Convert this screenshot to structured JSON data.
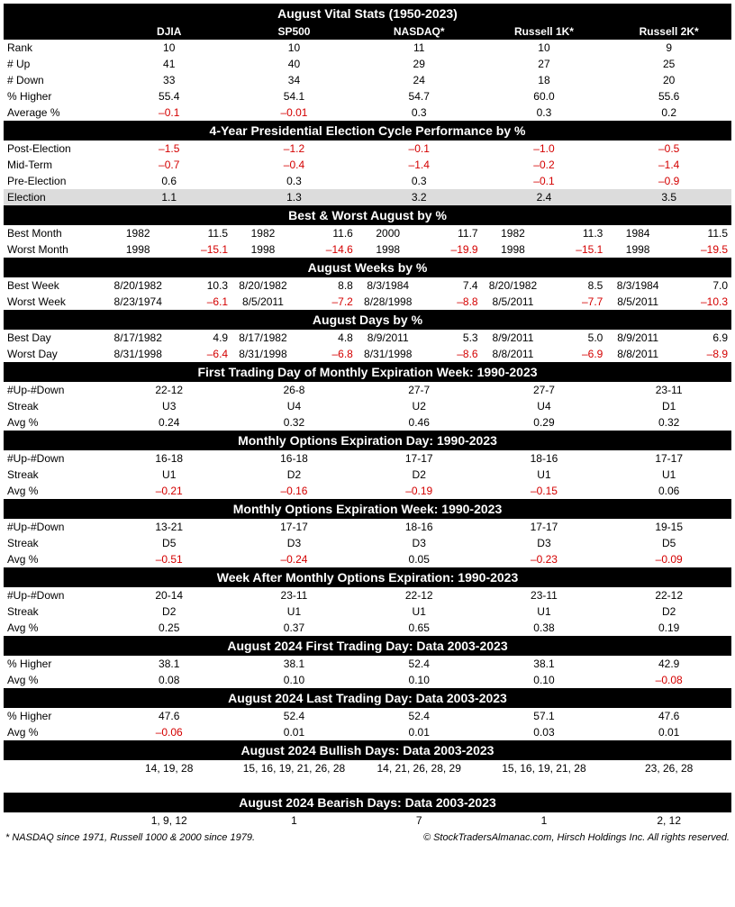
{
  "title_main": "August Vital Stats (1950-2023)",
  "indices": [
    "DJIA",
    "SP500",
    "NASDAQ*",
    "Russell 1K*",
    "Russell 2K*"
  ],
  "vital": {
    "rows": [
      {
        "label": "Rank",
        "vals": [
          "10",
          "10",
          "11",
          "10",
          "9"
        ],
        "neg": [
          0,
          0,
          0,
          0,
          0
        ]
      },
      {
        "label": "# Up",
        "vals": [
          "41",
          "40",
          "29",
          "27",
          "25"
        ],
        "neg": [
          0,
          0,
          0,
          0,
          0
        ]
      },
      {
        "label": "# Down",
        "vals": [
          "33",
          "34",
          "24",
          "18",
          "20"
        ],
        "neg": [
          0,
          0,
          0,
          0,
          0
        ]
      },
      {
        "label": "% Higher",
        "vals": [
          "55.4",
          "54.1",
          "54.7",
          "60.0",
          "55.6"
        ],
        "neg": [
          0,
          0,
          0,
          0,
          0
        ]
      },
      {
        "label": "Average %",
        "vals": [
          "–0.1",
          "–0.01",
          "0.3",
          "0.3",
          "0.2"
        ],
        "neg": [
          1,
          1,
          0,
          0,
          0
        ]
      }
    ]
  },
  "title_pres": "4-Year Presidential Election Cycle Performance by %",
  "pres": {
    "rows": [
      {
        "label": "Post-Election",
        "vals": [
          "–1.5",
          "–1.2",
          "–0.1",
          "–1.0",
          "–0.5"
        ],
        "neg": [
          1,
          1,
          1,
          1,
          1
        ],
        "shade": 0
      },
      {
        "label": "Mid-Term",
        "vals": [
          "–0.7",
          "–0.4",
          "–1.4",
          "–0.2",
          "–1.4"
        ],
        "neg": [
          1,
          1,
          1,
          1,
          1
        ],
        "shade": 0
      },
      {
        "label": "Pre-Election",
        "vals": [
          "0.6",
          "0.3",
          "0.3",
          "–0.1",
          "–0.9"
        ],
        "neg": [
          0,
          0,
          0,
          1,
          1
        ],
        "shade": 0
      },
      {
        "label": "Election",
        "vals": [
          "1.1",
          "1.3",
          "3.2",
          "2.4",
          "3.5"
        ],
        "neg": [
          0,
          0,
          0,
          0,
          0
        ],
        "shade": 1
      }
    ]
  },
  "title_bwmonth": "Best & Worst August by %",
  "bwmonth": {
    "rows": [
      {
        "label": "Best Month",
        "pairs": [
          [
            "1982",
            "11.5"
          ],
          [
            "1982",
            "11.6"
          ],
          [
            "2000",
            "11.7"
          ],
          [
            "1982",
            "11.3"
          ],
          [
            "1984",
            "11.5"
          ]
        ],
        "neg": [
          0,
          0,
          0,
          0,
          0
        ]
      },
      {
        "label": "Worst Month",
        "pairs": [
          [
            "1998",
            "–15.1"
          ],
          [
            "1998",
            "–14.6"
          ],
          [
            "1998",
            "–19.9"
          ],
          [
            "1998",
            "–15.1"
          ],
          [
            "1998",
            "–19.5"
          ]
        ],
        "neg": [
          1,
          1,
          1,
          1,
          1
        ]
      }
    ]
  },
  "title_weeks": "August Weeks by %",
  "weeks": {
    "rows": [
      {
        "label": "Best Week",
        "pairs": [
          [
            "8/20/1982",
            "10.3"
          ],
          [
            "8/20/1982",
            "8.8"
          ],
          [
            "8/3/1984",
            "7.4"
          ],
          [
            "8/20/1982",
            "8.5"
          ],
          [
            "8/3/1984",
            "7.0"
          ]
        ],
        "neg": [
          0,
          0,
          0,
          0,
          0
        ]
      },
      {
        "label": "Worst Week",
        "pairs": [
          [
            "8/23/1974",
            "–6.1"
          ],
          [
            "8/5/2011",
            "–7.2"
          ],
          [
            "8/28/1998",
            "–8.8"
          ],
          [
            "8/5/2011",
            "–7.7"
          ],
          [
            "8/5/2011",
            "–10.3"
          ]
        ],
        "neg": [
          1,
          1,
          1,
          1,
          1
        ]
      }
    ]
  },
  "title_days": "August Days by %",
  "days": {
    "rows": [
      {
        "label": "Best Day",
        "pairs": [
          [
            "8/17/1982",
            "4.9"
          ],
          [
            "8/17/1982",
            "4.8"
          ],
          [
            "8/9/2011",
            "5.3"
          ],
          [
            "8/9/2011",
            "5.0"
          ],
          [
            "8/9/2011",
            "6.9"
          ]
        ],
        "neg": [
          0,
          0,
          0,
          0,
          0
        ]
      },
      {
        "label": "Worst Day",
        "pairs": [
          [
            "8/31/1998",
            "–6.4"
          ],
          [
            "8/31/1998",
            "–6.8"
          ],
          [
            "8/31/1998",
            "–8.6"
          ],
          [
            "8/8/2011",
            "–6.9"
          ],
          [
            "8/8/2011",
            "–8.9"
          ]
        ],
        "neg": [
          1,
          1,
          1,
          1,
          1
        ]
      }
    ]
  },
  "title_firstexp": "First Trading Day of Monthly Expiration Week: 1990-2023",
  "firstexp": {
    "rows": [
      {
        "label": "#Up-#Down",
        "vals": [
          "22-12",
          "26-8",
          "27-7",
          "27-7",
          "23-11"
        ],
        "neg": [
          0,
          0,
          0,
          0,
          0
        ]
      },
      {
        "label": "Streak",
        "vals": [
          "U3",
          "U4",
          "U2",
          "U4",
          "D1"
        ],
        "neg": [
          0,
          0,
          0,
          0,
          0
        ]
      },
      {
        "label": "Avg %",
        "vals": [
          "0.24",
          "0.32",
          "0.46",
          "0.29",
          "0.32"
        ],
        "neg": [
          0,
          0,
          0,
          0,
          0
        ]
      }
    ]
  },
  "title_expday": "Monthly Options Expiration Day: 1990-2023",
  "expday": {
    "rows": [
      {
        "label": "#Up-#Down",
        "vals": [
          "16-18",
          "16-18",
          "17-17",
          "18-16",
          "17-17"
        ],
        "neg": [
          0,
          0,
          0,
          0,
          0
        ]
      },
      {
        "label": "Streak",
        "vals": [
          "U1",
          "D2",
          "D2",
          "U1",
          "U1"
        ],
        "neg": [
          0,
          0,
          0,
          0,
          0
        ]
      },
      {
        "label": "Avg %",
        "vals": [
          "–0.21",
          "–0.16",
          "–0.19",
          "–0.15",
          "0.06"
        ],
        "neg": [
          1,
          1,
          1,
          1,
          0
        ]
      }
    ]
  },
  "title_expweek": "Monthly Options Expiration Week: 1990-2023",
  "expweek": {
    "rows": [
      {
        "label": "#Up-#Down",
        "vals": [
          "13-21",
          "17-17",
          "18-16",
          "17-17",
          "19-15"
        ],
        "neg": [
          0,
          0,
          0,
          0,
          0
        ]
      },
      {
        "label": "Streak",
        "vals": [
          "D5",
          "D3",
          "D3",
          "D3",
          "D5"
        ],
        "neg": [
          0,
          0,
          0,
          0,
          0
        ]
      },
      {
        "label": "Avg %",
        "vals": [
          "–0.51",
          "–0.24",
          "0.05",
          "–0.23",
          "–0.09"
        ],
        "neg": [
          1,
          1,
          0,
          1,
          1
        ]
      }
    ]
  },
  "title_after": "Week After Monthly Options Expiration: 1990-2023",
  "after": {
    "rows": [
      {
        "label": "#Up-#Down",
        "vals": [
          "20-14",
          "23-11",
          "22-12",
          "23-11",
          "22-12"
        ],
        "neg": [
          0,
          0,
          0,
          0,
          0
        ]
      },
      {
        "label": "Streak",
        "vals": [
          "D2",
          "U1",
          "U1",
          "U1",
          "D2"
        ],
        "neg": [
          0,
          0,
          0,
          0,
          0
        ]
      },
      {
        "label": "Avg %",
        "vals": [
          "0.25",
          "0.37",
          "0.65",
          "0.38",
          "0.19"
        ],
        "neg": [
          0,
          0,
          0,
          0,
          0
        ]
      }
    ]
  },
  "title_first24": "August 2024 First Trading Day: Data 2003-2023",
  "first24": {
    "rows": [
      {
        "label": "% Higher",
        "vals": [
          "38.1",
          "38.1",
          "52.4",
          "38.1",
          "42.9"
        ],
        "neg": [
          0,
          0,
          0,
          0,
          0
        ]
      },
      {
        "label": "Avg %",
        "vals": [
          "0.08",
          "0.10",
          "0.10",
          "0.10",
          "–0.08"
        ],
        "neg": [
          0,
          0,
          0,
          0,
          1
        ]
      }
    ]
  },
  "title_last24": "August 2024 Last Trading Day: Data 2003-2023",
  "last24": {
    "rows": [
      {
        "label": "% Higher",
        "vals": [
          "47.6",
          "52.4",
          "52.4",
          "57.1",
          "47.6"
        ],
        "neg": [
          0,
          0,
          0,
          0,
          0
        ]
      },
      {
        "label": "Avg %",
        "vals": [
          "–0.06",
          "0.01",
          "0.01",
          "0.03",
          "0.01"
        ],
        "neg": [
          1,
          0,
          0,
          0,
          0
        ]
      }
    ]
  },
  "title_bull": "August 2024 Bullish Days: Data 2003-2023",
  "bull": {
    "rows": [
      {
        "label": "",
        "vals": [
          "14, 19, 28",
          "15, 16, 19, 21, 26, 28",
          "14, 21, 26, 28, 29",
          "15, 16, 19, 21, 28",
          "23, 26, 28"
        ],
        "neg": [
          0,
          0,
          0,
          0,
          0
        ]
      }
    ]
  },
  "title_bear": "August 2024 Bearish Days: Data 2003-2023",
  "bear": {
    "rows": [
      {
        "label": "",
        "vals": [
          "1, 9, 12",
          "1",
          "7",
          "1",
          "2, 12"
        ],
        "neg": [
          0,
          0,
          0,
          0,
          0
        ]
      }
    ]
  },
  "footnote_left": "* NASDAQ since 1971, Russell 1000 & 2000 since 1979.",
  "footnote_right": "© StockTradersAlmanac.com, Hirsch Holdings Inc. All rights reserved."
}
